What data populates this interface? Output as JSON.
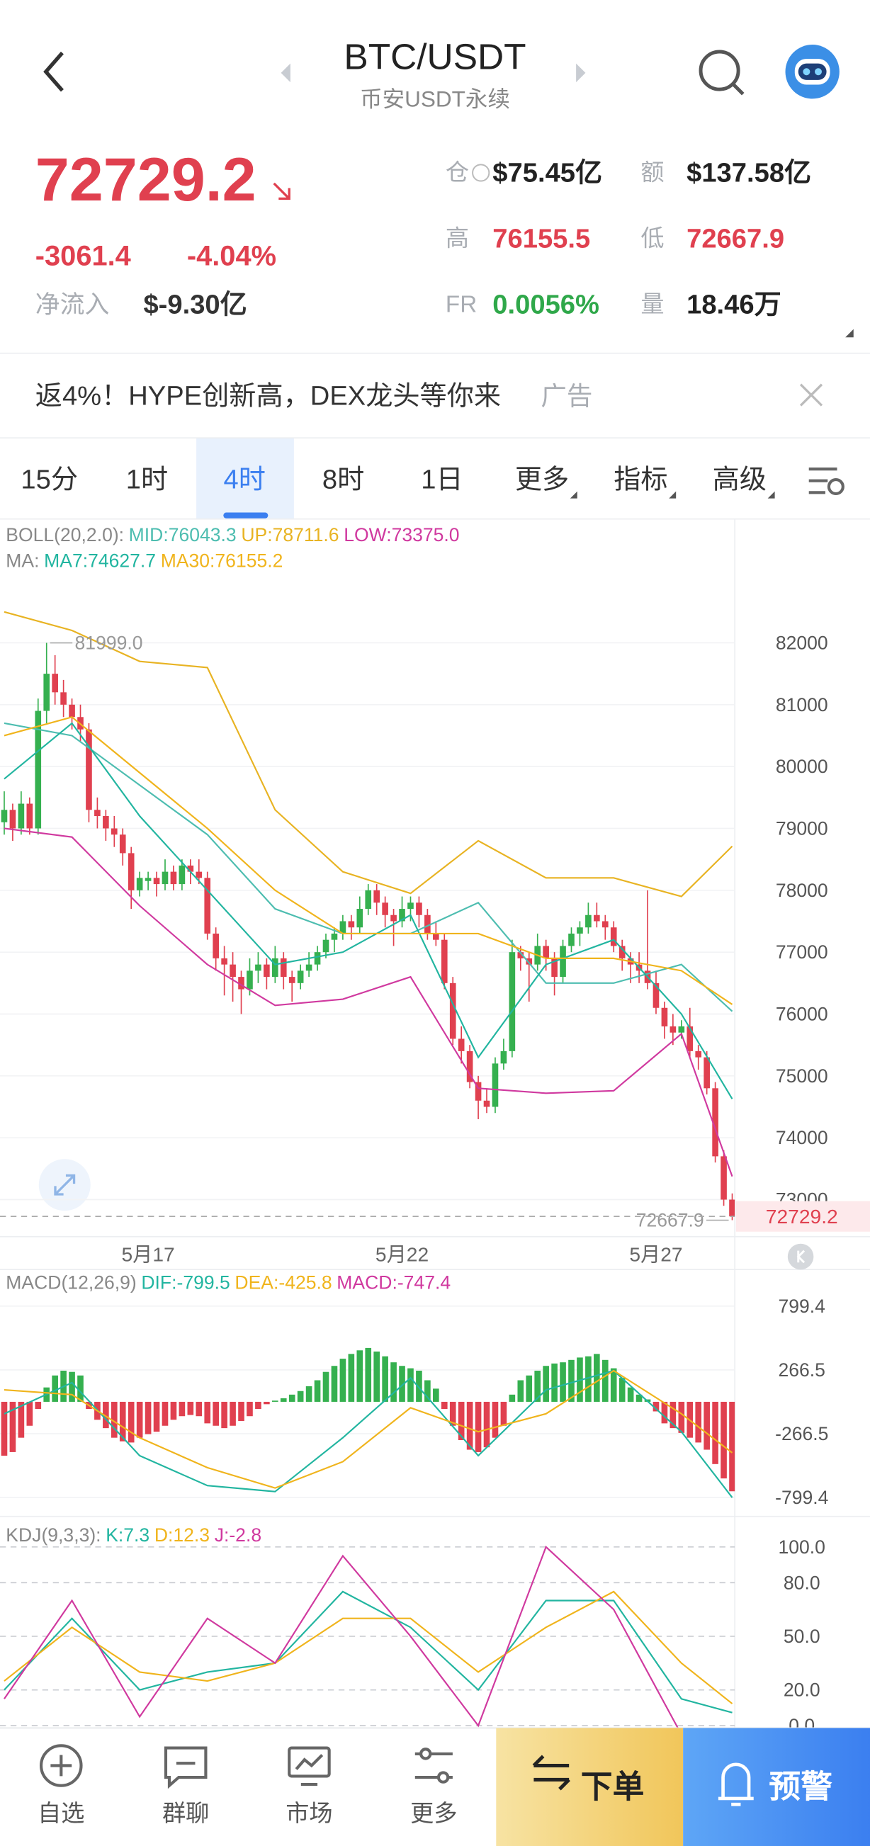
{
  "header": {
    "title": "BTC/USDT",
    "subtitle": "币安USDT永续"
  },
  "quote": {
    "price": "72729.2",
    "change": "-3061.4",
    "change_pct": "-4.04%",
    "net_inflow_label": "净流入",
    "net_inflow": "$-9.30亿",
    "stats": [
      {
        "label": "仓",
        "value": "$75.45亿"
      },
      {
        "label": "额",
        "value": "$137.58亿"
      },
      {
        "label": "高",
        "value": "76155.5"
      },
      {
        "label": "低",
        "value": "72667.9"
      },
      {
        "label": "FR",
        "value": "0.0056%"
      },
      {
        "label": "量",
        "value": "18.46万"
      }
    ]
  },
  "ad": {
    "text": "返4%！HYPE创新高，DEX龙头等你来",
    "tag": "广告"
  },
  "tabs": {
    "items": [
      "15分",
      "1时",
      "4时",
      "8时",
      "1日",
      "更多",
      "指标",
      "高级"
    ],
    "selected": 2
  },
  "chart_data": [
    {
      "type": "candlestick",
      "grid": "solid",
      "up_color": "#35b04f",
      "down_color": "#e0404f",
      "ylim": [
        72440,
        84030
      ],
      "yticks": [
        73000,
        74000,
        75000,
        76000,
        77000,
        78000,
        79000,
        80000,
        81000,
        82000
      ],
      "categories": [
        null,
        null,
        null,
        null,
        null,
        null,
        null,
        null,
        null,
        null,
        null,
        null,
        null,
        null,
        null,
        null,
        null,
        "5月17",
        null,
        null,
        null,
        null,
        null,
        null,
        null,
        null,
        null,
        null,
        null,
        null,
        null,
        null,
        null,
        null,
        null,
        null,
        null,
        null,
        null,
        null,
        null,
        null,
        null,
        null,
        null,
        null,
        null,
        "5月22",
        null,
        null,
        null,
        null,
        null,
        null,
        null,
        null,
        null,
        null,
        null,
        null,
        null,
        null,
        null,
        null,
        null,
        null,
        null,
        null,
        null,
        null,
        null,
        null,
        null,
        null,
        null,
        null,
        null,
        "5月27",
        null,
        null,
        null,
        null,
        null,
        null,
        null,
        null,
        null
      ],
      "ohlc": [
        [
          79100,
          79600,
          78900,
          79300
        ],
        [
          79300,
          79400,
          78800,
          79000
        ],
        [
          79000,
          79600,
          78900,
          79400
        ],
        [
          79400,
          79500,
          78900,
          79000
        ],
        [
          79000,
          81100,
          78900,
          80900
        ],
        [
          80900,
          81999,
          80700,
          81500
        ],
        [
          81500,
          81800,
          81000,
          81200
        ],
        [
          81200,
          81400,
          80800,
          81000
        ],
        [
          81000,
          81100,
          80600,
          80800
        ],
        [
          80800,
          81000,
          80400,
          80600
        ],
        [
          80600,
          80700,
          79100,
          79300
        ],
        [
          79300,
          79500,
          79000,
          79200
        ],
        [
          79200,
          79300,
          78800,
          79000
        ],
        [
          79000,
          79200,
          78700,
          78900
        ],
        [
          78900,
          79000,
          78400,
          78600
        ],
        [
          78600,
          78700,
          77700,
          78000
        ],
        [
          78000,
          78300,
          77900,
          78200
        ],
        [
          78150,
          78300,
          78000,
          78200
        ],
        [
          78200,
          78300,
          77900,
          78100
        ],
        [
          78100,
          78500,
          78000,
          78300
        ],
        [
          78300,
          78400,
          78000,
          78100
        ],
        [
          78100,
          78500,
          78000,
          78400
        ],
        [
          78400,
          78500,
          78100,
          78300
        ],
        [
          78300,
          78500,
          78100,
          78200
        ],
        [
          78200,
          78300,
          77200,
          77300
        ],
        [
          77300,
          77400,
          76700,
          76900
        ],
        [
          76900,
          77100,
          76300,
          76800
        ],
        [
          76800,
          77000,
          76200,
          76600
        ],
        [
          76600,
          76700,
          76000,
          76400
        ],
        [
          76400,
          76900,
          76300,
          76700
        ],
        [
          76700,
          77000,
          76500,
          76800
        ],
        [
          76800,
          76900,
          76400,
          76600
        ],
        [
          76600,
          77100,
          76500,
          76900
        ],
        [
          76900,
          77000,
          76400,
          76600
        ],
        [
          76600,
          76700,
          76200,
          76500
        ],
        [
          76500,
          76800,
          76400,
          76700
        ],
        [
          76700,
          77000,
          76600,
          76800
        ],
        [
          76800,
          77100,
          76700,
          77000
        ],
        [
          77000,
          77300,
          76900,
          77200
        ],
        [
          77200,
          77400,
          77000,
          77300
        ],
        [
          77300,
          77600,
          77200,
          77500
        ],
        [
          77500,
          77600,
          77200,
          77400
        ],
        [
          77400,
          77900,
          77300,
          77700
        ],
        [
          77700,
          78100,
          77600,
          78000
        ],
        [
          78000,
          78100,
          77600,
          77800
        ],
        [
          77800,
          77900,
          77400,
          77600
        ],
        [
          77600,
          77700,
          77100,
          77500
        ],
        [
          77500,
          77900,
          77400,
          77700
        ],
        [
          77700,
          77900,
          77500,
          77800
        ],
        [
          77800,
          77900,
          77400,
          77600
        ],
        [
          77600,
          77700,
          77200,
          77300
        ],
        [
          77300,
          77500,
          77100,
          77200
        ],
        [
          77200,
          77300,
          76400,
          76500
        ],
        [
          76500,
          76600,
          75500,
          75600
        ],
        [
          75600,
          75800,
          75200,
          75400
        ],
        [
          75400,
          75500,
          74800,
          74900
        ],
        [
          74900,
          75000,
          74300,
          74600
        ],
        [
          74600,
          74800,
          74400,
          74500
        ],
        [
          74500,
          75300,
          74400,
          75200
        ],
        [
          75200,
          75600,
          75100,
          75400
        ],
        [
          75400,
          77200,
          75300,
          77000
        ],
        [
          77000,
          77100,
          76700,
          76900
        ],
        [
          76900,
          77000,
          76200,
          76800
        ],
        [
          76800,
          77300,
          76700,
          77100
        ],
        [
          77100,
          77200,
          76700,
          76900
        ],
        [
          76900,
          77000,
          76300,
          76600
        ],
        [
          76600,
          77200,
          76500,
          77100
        ],
        [
          77100,
          77400,
          77000,
          77300
        ],
        [
          77300,
          77500,
          77100,
          77400
        ],
        [
          77400,
          77800,
          77300,
          77600
        ],
        [
          77600,
          77800,
          77400,
          77500
        ],
        [
          77500,
          77600,
          77200,
          77400
        ],
        [
          77400,
          77500,
          77000,
          77100
        ],
        [
          77100,
          77200,
          76700,
          76900
        ],
        [
          76900,
          77000,
          76500,
          76800
        ],
        [
          76800,
          77000,
          76500,
          76700
        ],
        [
          76700,
          78000,
          76400,
          76500
        ],
        [
          76500,
          76700,
          76000,
          76100
        ],
        [
          76100,
          76200,
          75600,
          75800
        ],
        [
          75800,
          76000,
          75500,
          75700
        ],
        [
          75700,
          75900,
          75600,
          75800
        ],
        [
          75800,
          76100,
          75300,
          75400
        ],
        [
          75400,
          75500,
          75100,
          75300
        ],
        [
          75300,
          75400,
          74700,
          74800
        ],
        [
          74800,
          74900,
          73600,
          73700
        ],
        [
          73700,
          73800,
          72900,
          73000
        ],
        [
          73000,
          73100,
          72667.9,
          72729.2
        ]
      ],
      "overlays": [
        {
          "title": "BOLL(20,2.0):",
          "series": [
            {
              "name": "MID:76043.3",
              "color": "#4dbdb0",
              "x": [
                0,
                8,
                16,
                24,
                32,
                40,
                48,
                56,
                64,
                72,
                80,
                86
              ],
              "values": [
                80700,
                80500,
                79700,
                78900,
                77700,
                77300,
                77300,
                77800,
                76500,
                76500,
                76800,
                76043.3
              ]
            },
            {
              "name": "UP:78711.6",
              "color": "#e8b322",
              "x": [
                0,
                8,
                16,
                24,
                32,
                40,
                48,
                56,
                64,
                72,
                80,
                86
              ],
              "values": [
                82500,
                82200,
                81700,
                81600,
                79300,
                78300,
                77950,
                78800,
                78200,
                78200,
                77900,
                78711.6
              ]
            },
            {
              "name": "LOW:73375.0",
              "color": "#d0399f",
              "x": [
                0,
                8,
                16,
                24,
                32,
                40,
                48,
                56,
                64,
                72,
                80,
                86
              ],
              "values": [
                79000,
                78860,
                77750,
                76800,
                76140,
                76240,
                76600,
                74800,
                74720,
                74760,
                75680,
                73375
              ]
            }
          ]
        },
        {
          "title": "MA:",
          "series": [
            {
              "name": "MA7:74627.7",
              "color": "#22b5a0",
              "x": [
                0,
                8,
                16,
                24,
                32,
                40,
                48,
                56,
                64,
                72,
                80,
                86
              ],
              "values": [
                79800,
                80700,
                79200,
                78000,
                76800,
                77000,
                77600,
                75300,
                76800,
                77200,
                76000,
                74627.7
              ]
            },
            {
              "name": "MA30:76155.2",
              "color": "#f0b41c",
              "x": [
                0,
                8,
                16,
                24,
                32,
                40,
                48,
                56,
                64,
                72,
                80,
                86
              ],
              "values": [
                80500,
                80800,
                79900,
                79000,
                78000,
                77300,
                77300,
                77300,
                76900,
                76900,
                76700,
                76155.2
              ]
            }
          ]
        }
      ],
      "annotations": [
        {
          "index": 5,
          "value": 81999,
          "label": "81999.0"
        },
        {
          "index": 86,
          "value": 72667.9,
          "label": "72667.9"
        }
      ],
      "last_price": {
        "value": 72729.2,
        "label": "72729.2"
      }
    },
    {
      "type": "macd",
      "title": "MACD(12,26,9)",
      "grid": "solid",
      "up_color": "#35b04f",
      "down_color": "#e0404f",
      "ylim": [
        -908,
        1105
      ],
      "yticks": [
        -799.4,
        -266.5,
        266.5,
        799.4
      ],
      "series": [
        {
          "name": "DIF:-799.5",
          "color": "#22b5a0",
          "style": "line",
          "x": [
            0,
            8,
            16,
            24,
            32,
            40,
            48,
            56,
            64,
            72,
            80,
            86
          ],
          "values": [
            -100,
            160,
            -450,
            -700,
            -750,
            -300,
            200,
            -450,
            100,
            260,
            -250,
            -799.5
          ]
        },
        {
          "name": "DEA:-425.8",
          "color": "#f0b41c",
          "style": "line",
          "x": [
            0,
            8,
            16,
            24,
            32,
            40,
            48,
            56,
            64,
            72,
            80,
            86
          ],
          "values": [
            100,
            60,
            -300,
            -550,
            -720,
            -500,
            -50,
            -250,
            -100,
            260,
            -100,
            -425.8
          ]
        },
        {
          "name": "MACD:-747.4",
          "color": "#d0399f",
          "style": "bar",
          "values": [
            -450,
            -420,
            -300,
            -200,
            -60,
            120,
            220,
            260,
            250,
            220,
            -60,
            -150,
            -220,
            -300,
            -330,
            -340,
            -300,
            -270,
            -250,
            -200,
            -150,
            -120,
            -110,
            -120,
            -180,
            -200,
            -220,
            -200,
            -160,
            -120,
            -60,
            -20,
            10,
            30,
            60,
            90,
            130,
            180,
            250,
            300,
            360,
            400,
            430,
            450,
            420,
            380,
            330,
            300,
            280,
            260,
            180,
            110,
            -60,
            -200,
            -320,
            -400,
            -420,
            -380,
            -300,
            -200,
            60,
            180,
            220,
            260,
            300,
            320,
            330,
            350,
            370,
            380,
            400,
            350,
            280,
            200,
            120,
            60,
            20,
            -80,
            -180,
            -220,
            -260,
            -300,
            -340,
            -400,
            -520,
            -640,
            -747.4
          ]
        }
      ]
    },
    {
      "type": "line",
      "title": "KDJ(9,3,3):",
      "grid": "dashed",
      "ylim": [
        -1.3,
        113.8
      ],
      "yticks": [
        {
          "value": 0,
          "label": "0.0"
        },
        {
          "value": 20,
          "label": "20.0"
        },
        {
          "value": 50,
          "label": "50.0"
        },
        {
          "value": 80,
          "label": "80.0"
        },
        {
          "value": 100,
          "label": "100.0"
        }
      ],
      "series": [
        {
          "name": "K:7.3",
          "color": "#22b5a0",
          "x": [
            0,
            8,
            16,
            24,
            32,
            40,
            48,
            56,
            64,
            72,
            80,
            86
          ],
          "values": [
            20,
            60,
            20,
            30,
            35,
            75,
            55,
            20,
            70,
            70,
            15,
            7.3
          ]
        },
        {
          "name": "D:12.3",
          "color": "#f0b41c",
          "x": [
            0,
            8,
            16,
            24,
            32,
            40,
            48,
            56,
            64,
            72,
            80,
            86
          ],
          "values": [
            25,
            55,
            30,
            25,
            35,
            60,
            60,
            30,
            55,
            75,
            35,
            12.3
          ]
        },
        {
          "name": "J:-2.8",
          "color": "#d0399f",
          "x": [
            0,
            8,
            16,
            24,
            32,
            40,
            48,
            56,
            64,
            72,
            80,
            86
          ],
          "values": [
            15,
            70,
            5,
            60,
            35,
            95,
            50,
            0,
            100,
            65,
            -5,
            -2.8
          ]
        }
      ]
    }
  ],
  "nav": {
    "items": [
      "自选",
      "群聊",
      "市场",
      "更多"
    ],
    "buttons": [
      "下单",
      "预警"
    ]
  }
}
